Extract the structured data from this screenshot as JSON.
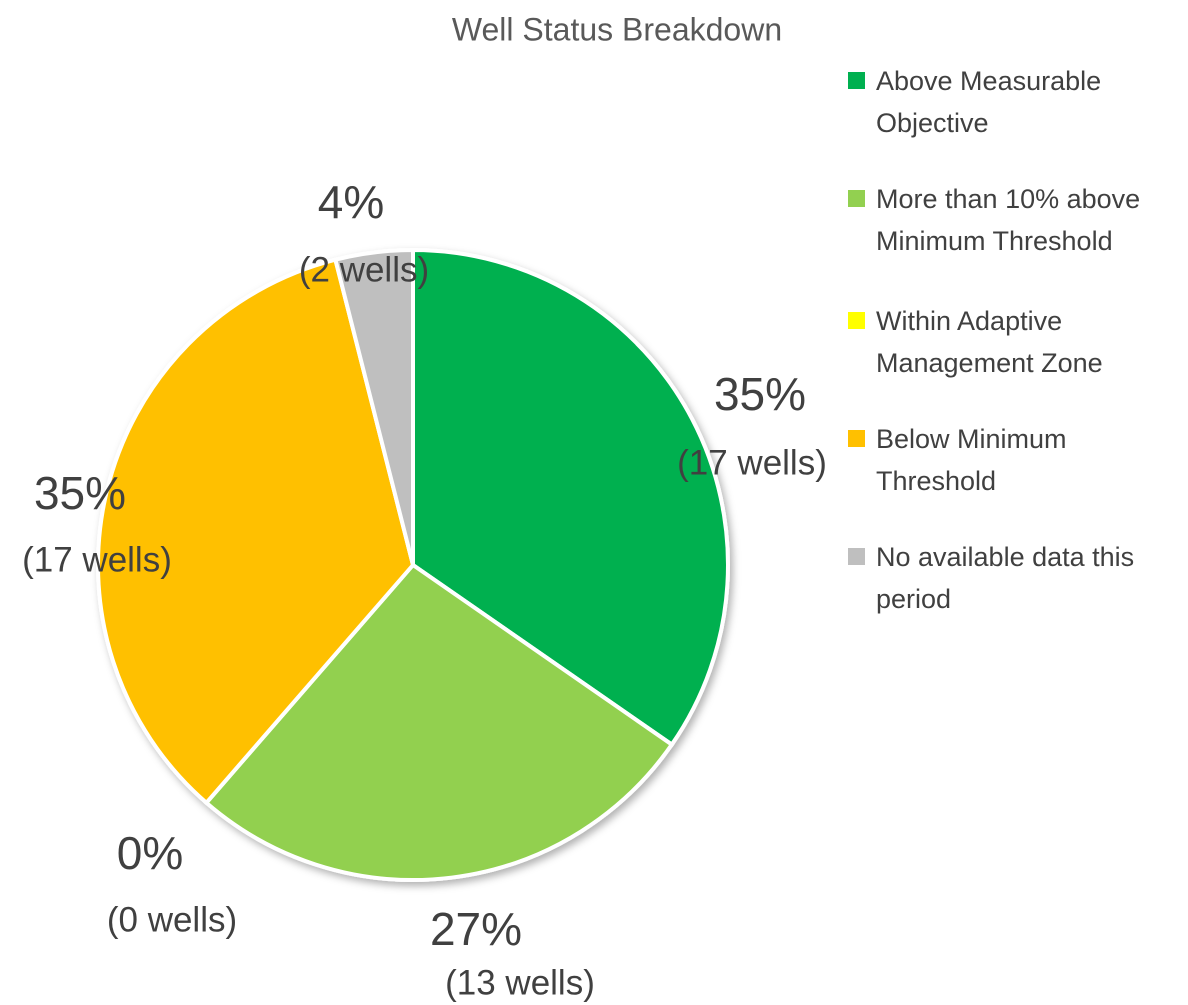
{
  "chart_data": {
    "type": "pie",
    "title": "Well Status Breakdown",
    "categories": [
      "Above Measurable Objective",
      "More than 10% above Minimum Threshold",
      "Within Adaptive Management Zone",
      "Below Minimum Threshold",
      "No available data this period"
    ],
    "values": [
      35,
      27,
      0,
      35,
      4
    ],
    "value_labels": [
      "35%",
      "27%",
      "0%",
      "35%",
      "4%"
    ],
    "count_labels": [
      "(17 wells)",
      "(13 wells)",
      "(0 wells)",
      "(17 wells)",
      "(2 wells)"
    ],
    "colors": [
      "#00b050",
      "#92d050",
      "#ffff00",
      "#ffc000",
      "#bfbfbf"
    ],
    "legend": "right"
  }
}
